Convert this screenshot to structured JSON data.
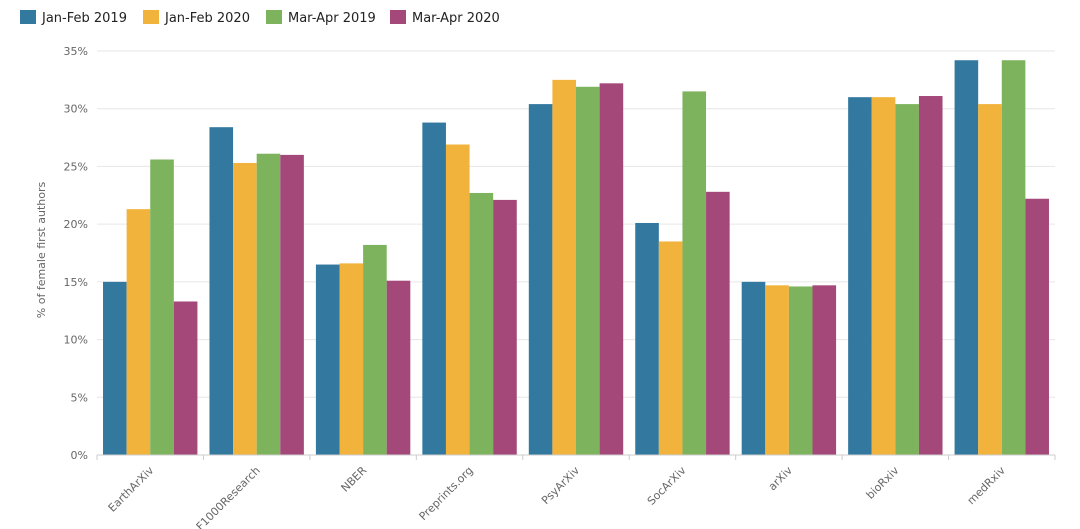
{
  "chart_data": {
    "type": "bar",
    "ylabel": "% of female first authors",
    "ylim": [
      0,
      35
    ],
    "yticks": [
      0,
      5,
      10,
      15,
      20,
      25,
      30,
      35
    ],
    "ytick_suffix": "%",
    "legend_position": "top-left",
    "grid": true,
    "categories": [
      "EarthArXiv",
      "F1000Research",
      "NBER",
      "Preprints.org",
      "PsyArXiv",
      "SocArXiv",
      "arXiv",
      "bioRxiv",
      "medRxiv"
    ],
    "series": [
      {
        "name": "Jan-Feb 2019",
        "color": "#33789f",
        "values": [
          15.0,
          28.4,
          16.5,
          28.8,
          30.4,
          20.1,
          15.0,
          31.0,
          34.2
        ]
      },
      {
        "name": "Jan-Feb 2020",
        "color": "#f2b33d",
        "values": [
          21.3,
          25.3,
          16.6,
          26.9,
          32.5,
          18.5,
          14.7,
          31.0,
          30.4
        ]
      },
      {
        "name": "Mar-Apr 2019",
        "color": "#7db35d",
        "values": [
          25.6,
          26.1,
          18.2,
          22.7,
          31.9,
          31.5,
          14.6,
          30.4,
          34.2
        ]
      },
      {
        "name": "Mar-Apr 2020",
        "color": "#a4487a",
        "values": [
          13.3,
          26.0,
          15.1,
          22.1,
          32.2,
          22.8,
          14.7,
          31.1,
          22.2
        ]
      }
    ]
  }
}
